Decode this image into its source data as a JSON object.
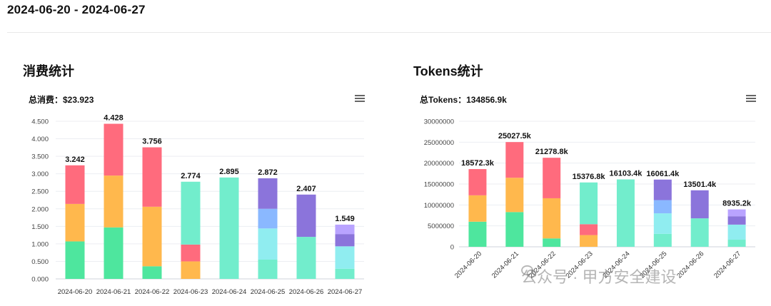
{
  "date_range": "2024-06-20 - 2024-06-27",
  "colors": [
    "#4ee69e",
    "#ffb84d",
    "#ff6b7d",
    "#72edcc",
    "#90edf0",
    "#8ab8ff",
    "#8b74db",
    "#b9a3ff"
  ],
  "consumption": {
    "title": "消费统计",
    "total_label": "总消费：$23.923",
    "menu_icon": "hamburger-menu-icon"
  },
  "tokens": {
    "title": "Tokens统计",
    "total_label": "总Tokens：134856.9k",
    "menu_icon": "hamburger-menu-icon"
  },
  "chart_data": [
    {
      "type": "bar",
      "stacked": true,
      "categories": [
        "2024-06-20",
        "2024-06-21",
        "2024-06-22",
        "2024-06-23",
        "2024-06-24",
        "2024-06-25",
        "2024-06-26",
        "2024-06-27"
      ],
      "y_ticks": [
        "0.000",
        "0.500",
        "1.000",
        "1.500",
        "2.000",
        "2.500",
        "3.000",
        "3.500",
        "4.000",
        "4.500"
      ],
      "ylim": [
        0,
        4.5
      ],
      "totals_labels": [
        "3.242",
        "4.428",
        "3.756",
        "2.774",
        "2.895",
        "2.872",
        "2.407",
        "1.549"
      ],
      "totals": [
        3.242,
        4.428,
        3.756,
        2.774,
        2.895,
        2.872,
        2.407,
        1.549
      ],
      "series": [
        {
          "color_index": 0,
          "values": [
            1.07,
            1.47,
            0.36,
            0,
            0,
            0,
            0,
            0
          ]
        },
        {
          "color_index": 1,
          "values": [
            1.07,
            1.48,
            1.7,
            0.5,
            0,
            0,
            0,
            0
          ]
        },
        {
          "color_index": 2,
          "values": [
            1.102,
            1.478,
            1.696,
            0.48,
            0,
            0,
            0,
            0
          ]
        },
        {
          "color_index": 3,
          "values": [
            0,
            0,
            0,
            1.794,
            2.895,
            0.55,
            1.2,
            0.29
          ]
        },
        {
          "color_index": 4,
          "values": [
            0,
            0,
            0,
            0,
            0,
            0.89,
            0,
            0.64
          ]
        },
        {
          "color_index": 5,
          "values": [
            0,
            0,
            0,
            0,
            0,
            0.562,
            0,
            0
          ]
        },
        {
          "color_index": 6,
          "values": [
            0,
            0,
            0,
            0,
            0,
            0.87,
            1.207,
            0.35
          ]
        },
        {
          "color_index": 7,
          "values": [
            0,
            0,
            0,
            0,
            0,
            0,
            0,
            0.269
          ]
        }
      ],
      "x_labels_rotated": false,
      "grid": true
    },
    {
      "type": "bar",
      "stacked": true,
      "categories": [
        "2024-06-20",
        "2024-06-21",
        "2024-06-22",
        "2024-06-23",
        "2024-06-24",
        "2024-06-25",
        "2024-06-26",
        "2024-06-27"
      ],
      "y_ticks": [
        "0",
        "5000000",
        "10000000",
        "15000000",
        "20000000",
        "25000000",
        "30000000"
      ],
      "ylim": [
        0,
        30000000
      ],
      "totals_labels": [
        "18572.3k",
        "25027.5k",
        "21278.8k",
        "15376.8k",
        "16103.4k",
        "16061.4k",
        "13501.4k",
        "8935.2k"
      ],
      "totals": [
        18572300,
        25027500,
        21278800,
        15376800,
        16103400,
        16061400,
        13501400,
        8935200
      ],
      "series": [
        {
          "color_index": 0,
          "values": [
            6000000,
            8300000,
            2000000,
            0,
            0,
            0,
            0,
            0
          ]
        },
        {
          "color_index": 1,
          "values": [
            6300000,
            8200000,
            9600000,
            2800000,
            0,
            0,
            0,
            0
          ]
        },
        {
          "color_index": 2,
          "values": [
            6272300,
            8527500,
            9678800,
            2600000,
            0,
            0,
            0,
            0
          ]
        },
        {
          "color_index": 3,
          "values": [
            0,
            0,
            0,
            9976800,
            16103400,
            3100000,
            6800000,
            1700000
          ]
        },
        {
          "color_index": 4,
          "values": [
            0,
            0,
            0,
            0,
            0,
            4900000,
            0,
            3600000
          ]
        },
        {
          "color_index": 5,
          "values": [
            0,
            0,
            0,
            0,
            0,
            3161400,
            0,
            0
          ]
        },
        {
          "color_index": 6,
          "values": [
            0,
            0,
            0,
            0,
            0,
            4900000,
            6701400,
            2000000
          ]
        },
        {
          "color_index": 7,
          "values": [
            0,
            0,
            0,
            0,
            0,
            0,
            0,
            1635200
          ]
        }
      ],
      "x_labels_rotated": true,
      "grid": true
    }
  ],
  "watermark": {
    "icon": "wechat-icon",
    "text": "公众号 · 甲方安全建设"
  }
}
